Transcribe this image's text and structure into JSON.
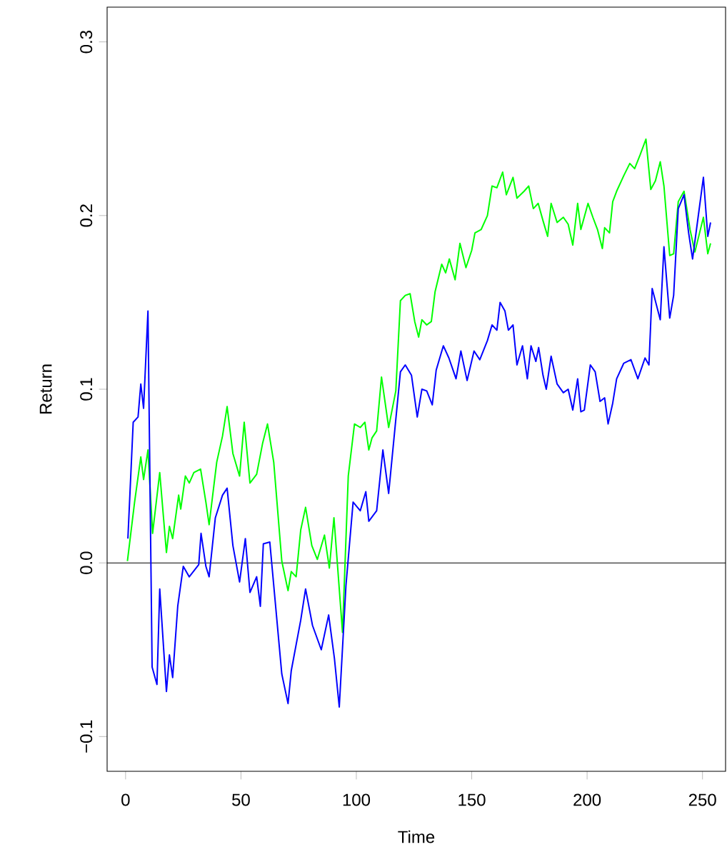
{
  "chart_data": {
    "type": "line",
    "xlabel": "Time",
    "ylabel": "Return",
    "xlim": [
      -8,
      260
    ],
    "ylim": [
      -0.12,
      0.32
    ],
    "xticks": [
      0,
      50,
      100,
      150,
      200,
      250
    ],
    "yticks": [
      {
        "value": -0.1,
        "label": "−0.1"
      },
      {
        "value": 0,
        "label": "0.0"
      },
      {
        "value": 0.1,
        "label": "0.1"
      },
      {
        "value": 0.2,
        "label": "0.2"
      },
      {
        "value": 0.3,
        "label": "0.3"
      }
    ],
    "ref_lines": [
      {
        "axis": "y",
        "value": 0,
        "color": "#000000",
        "line_style": "solid"
      }
    ],
    "series": [
      {
        "color": "#00ff00",
        "x": [
          0.8,
          3.9,
          6.6,
          7.8,
          9.7,
          11.7,
          14.8,
          17.7,
          19,
          20.4,
          23,
          23.9,
          25.9,
          27.6,
          29.6,
          32.5,
          34.8,
          36.2,
          39.5,
          42,
          44,
          46.5,
          49.4,
          51.4,
          53.9,
          56.8,
          59.4,
          61.5,
          64.2,
          67.7,
          70.4,
          71.8,
          73.9,
          75.9,
          78,
          80.7,
          83.1,
          86.2,
          88.3,
          90.3,
          94,
          96.5,
          99.2,
          101.7,
          103.7,
          105.4,
          106.8,
          108.8,
          110.9,
          114,
          117.1,
          119.1,
          121.2,
          123.3,
          125.3,
          127,
          128.4,
          130.5,
          132.5,
          134.1,
          137,
          138.7,
          140.3,
          142.8,
          144.9,
          147.5,
          150,
          151.4,
          154.1,
          156.8,
          158.8,
          160.9,
          163.4,
          165,
          167.9,
          169.6,
          172.7,
          174.7,
          176.7,
          178.8,
          180.9,
          182.9,
          184.4,
          187,
          189.7,
          191.8,
          193.8,
          195.9,
          197.3,
          200.4,
          202.5,
          204.5,
          206.6,
          207.6,
          209.7,
          211.1,
          212.8,
          215.9,
          218.5,
          220.6,
          223,
          225.5,
          227.6,
          229.6,
          231.7,
          233.3,
          235.8,
          237.5,
          239.5,
          242,
          244.6,
          246.7,
          250.4,
          252.3,
          253.5
        ],
        "values": [
          0.001,
          0.035,
          0.061,
          0.048,
          0.065,
          0.017,
          0.052,
          0.006,
          0.021,
          0.014,
          0.039,
          0.031,
          0.05,
          0.046,
          0.052,
          0.054,
          0.035,
          0.022,
          0.058,
          0.073,
          0.09,
          0.063,
          0.05,
          0.081,
          0.046,
          0.051,
          0.069,
          0.08,
          0.058,
          0.001,
          -0.016,
          -0.005,
          -0.008,
          0.019,
          0.032,
          0.01,
          0.002,
          0.016,
          -0.003,
          0.026,
          -0.04,
          0.05,
          0.08,
          0.078,
          0.081,
          0.065,
          0.072,
          0.076,
          0.107,
          0.078,
          0.099,
          0.151,
          0.154,
          0.155,
          0.139,
          0.13,
          0.14,
          0.137,
          0.139,
          0.156,
          0.172,
          0.167,
          0.175,
          0.163,
          0.184,
          0.17,
          0.18,
          0.19,
          0.192,
          0.2,
          0.217,
          0.216,
          0.225,
          0.212,
          0.222,
          0.21,
          0.214,
          0.217,
          0.204,
          0.207,
          0.197,
          0.188,
          0.207,
          0.196,
          0.199,
          0.195,
          0.183,
          0.207,
          0.192,
          0.207,
          0.199,
          0.192,
          0.181,
          0.193,
          0.19,
          0.208,
          0.214,
          0.223,
          0.23,
          0.227,
          0.235,
          0.244,
          0.215,
          0.22,
          0.231,
          0.217,
          0.177,
          0.178,
          0.208,
          0.214,
          0.192,
          0.179,
          0.199,
          0.178,
          0.184
        ]
      },
      {
        "color": "#0000ff",
        "x": [
          1,
          3.3,
          5.4,
          6.6,
          7.8,
          9.7,
          11.5,
          13.6,
          14.8,
          17.7,
          19,
          20.4,
          22.6,
          25,
          27.6,
          31.7,
          32.7,
          34.8,
          36.2,
          38.9,
          42,
          44,
          46.5,
          49.4,
          51.9,
          53.9,
          56.8,
          58.4,
          59.7,
          62.5,
          67.7,
          70.4,
          71.8,
          75.9,
          78,
          81,
          84.8,
          88,
          90.5,
          92.6,
          95.5,
          98.6,
          101.7,
          104.1,
          105.4,
          108.8,
          111.5,
          114,
          119.1,
          121.2,
          123.9,
          126.4,
          128.4,
          130.5,
          132.9,
          134.6,
          137.7,
          140.1,
          143.2,
          145.3,
          148,
          151,
          153.5,
          156.8,
          158.8,
          160.9,
          162.3,
          164.4,
          165.9,
          167.9,
          169.6,
          172,
          174.1,
          175.7,
          177.8,
          179,
          180.9,
          182.3,
          184.4,
          187,
          189.7,
          191.8,
          193.8,
          195.9,
          197.3,
          198.8,
          201.4,
          203.5,
          205.6,
          207.6,
          209.1,
          211.1,
          212.8,
          215.9,
          219,
          222,
          225.1,
          226.8,
          228.2,
          231.7,
          233.3,
          235.8,
          237.5,
          239.5,
          242,
          244,
          245.7,
          248.1,
          250.4,
          252.3,
          253.5
        ],
        "values": [
          0.014,
          0.081,
          0.084,
          0.103,
          0.089,
          0.145,
          -0.06,
          -0.07,
          -0.015,
          -0.074,
          -0.053,
          -0.066,
          -0.025,
          -0.002,
          -0.008,
          -0.001,
          0.017,
          -0.002,
          -0.008,
          0.026,
          0.039,
          0.043,
          0.01,
          -0.011,
          0.014,
          -0.017,
          -0.008,
          -0.025,
          0.011,
          0.012,
          -0.064,
          -0.081,
          -0.062,
          -0.033,
          -0.015,
          -0.036,
          -0.05,
          -0.03,
          -0.055,
          -0.083,
          -0.013,
          0.035,
          0.03,
          0.041,
          0.024,
          0.03,
          0.065,
          0.04,
          0.11,
          0.114,
          0.108,
          0.084,
          0.1,
          0.099,
          0.091,
          0.111,
          0.125,
          0.118,
          0.106,
          0.122,
          0.105,
          0.122,
          0.117,
          0.128,
          0.137,
          0.134,
          0.15,
          0.145,
          0.134,
          0.137,
          0.114,
          0.125,
          0.106,
          0.125,
          0.116,
          0.124,
          0.108,
          0.1,
          0.119,
          0.103,
          0.098,
          0.1,
          0.088,
          0.106,
          0.087,
          0.088,
          0.114,
          0.11,
          0.093,
          0.095,
          0.08,
          0.092,
          0.106,
          0.115,
          0.117,
          0.106,
          0.118,
          0.114,
          0.158,
          0.14,
          0.182,
          0.141,
          0.154,
          0.204,
          0.212,
          0.19,
          0.175,
          0.199,
          0.222,
          0.188,
          0.196
        ]
      }
    ]
  }
}
